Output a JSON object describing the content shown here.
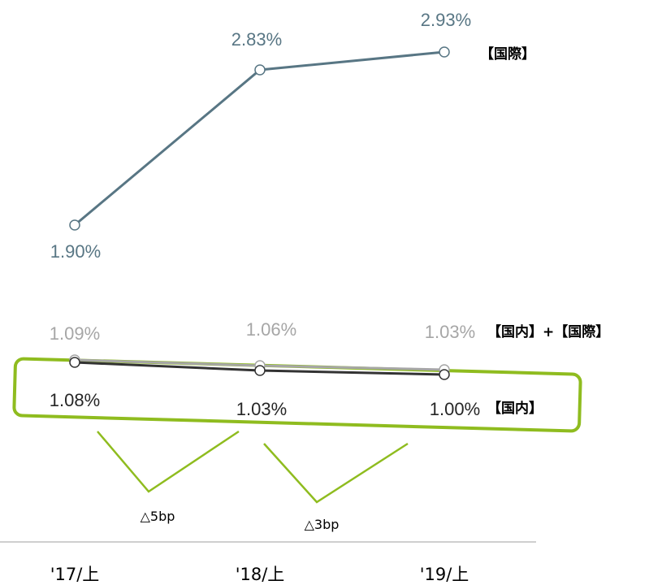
{
  "chart_data": {
    "type": "line",
    "categories": [
      "'17/上",
      "'18/上",
      "'19/上"
    ],
    "series": [
      {
        "name": "【国際】",
        "values": [
          1.9,
          2.83,
          2.93
        ],
        "labels": [
          "1.90%",
          "2.83%",
          "2.93%"
        ],
        "color": "#587684"
      },
      {
        "name": "【国内】+【国際】",
        "values": [
          1.09,
          1.06,
          1.03
        ],
        "labels": [
          "1.09%",
          "1.06%",
          "1.03%"
        ],
        "color": "#a6a6a6"
      },
      {
        "name": "【国内】",
        "values": [
          1.08,
          1.03,
          1.0
        ],
        "labels": [
          "1.08%",
          "1.03%",
          "1.00%"
        ],
        "color": "#333333"
      }
    ],
    "annotations": [
      "△5bp",
      "△3bp"
    ],
    "highlight_color": "#8fbc1f"
  }
}
